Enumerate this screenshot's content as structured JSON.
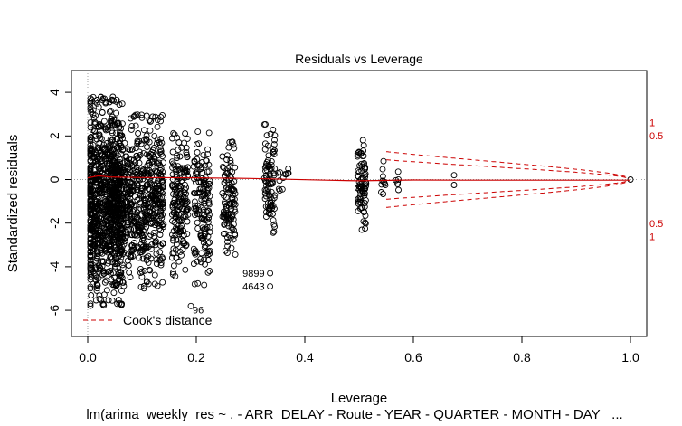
{
  "chart_data": {
    "type": "scatter",
    "title": "Residuals vs Leverage",
    "xlabel": "Leverage",
    "ylabel": "Standardized residuals",
    "subtitle": "lm(arima_weekly_res ~ . - ARR_DELAY - Route - YEAR - QUARTER - MONTH - DAY_ ...",
    "xlim": [
      -0.03,
      1.03
    ],
    "ylim": [
      -7.2,
      5
    ],
    "xticks": [
      0.0,
      0.2,
      0.4,
      0.6,
      0.8,
      1.0
    ],
    "xtick_labels": [
      "0.0",
      "0.2",
      "0.4",
      "0.6",
      "0.8",
      "1.0"
    ],
    "yticks": [
      -6,
      -4,
      -2,
      0,
      2,
      4
    ],
    "ytick_labels": [
      "-6",
      "-4",
      "-2",
      "0",
      "2",
      "4"
    ],
    "reference_lines": {
      "x": 0,
      "y": 0,
      "style": "dotted",
      "color": "#a0a0a0"
    },
    "point_clusters": [
      {
        "x": 0.03,
        "x_spread": 0.035,
        "y_low": -5.8,
        "y_high": 3.8,
        "points": 900
      },
      {
        "x": 0.09,
        "x_spread": 0.05,
        "y_low": -5.0,
        "y_high": 3.0,
        "points": 700
      },
      {
        "x": 0.17,
        "x_spread": 0.015,
        "y_low": -4.5,
        "y_high": 2.3,
        "points": 180
      },
      {
        "x": 0.21,
        "x_spread": 0.015,
        "y_low": -4.9,
        "y_high": 2.2,
        "points": 150
      },
      {
        "x": 0.26,
        "x_spread": 0.012,
        "y_low": -3.5,
        "y_high": 1.8,
        "points": 110
      },
      {
        "x": 0.335,
        "x_spread": 0.01,
        "y_low": -3.0,
        "y_high": 2.6,
        "points": 90
      },
      {
        "x": 0.36,
        "x_spread": 0.01,
        "y_low": -1.0,
        "y_high": 1.0,
        "points": 12
      },
      {
        "x": 0.505,
        "x_spread": 0.008,
        "y_low": -2.4,
        "y_high": 2.4,
        "points": 80
      },
      {
        "x": 0.545,
        "x_spread": 0.006,
        "y_low": -0.9,
        "y_high": 0.9,
        "points": 10
      },
      {
        "x": 0.57,
        "x_spread": 0.004,
        "y_low": -0.6,
        "y_high": 0.6,
        "points": 6
      }
    ],
    "labeled_points": [
      {
        "x": 0.336,
        "y": -4.3,
        "label": "9899"
      },
      {
        "x": 0.336,
        "y": -4.9,
        "label": "4643"
      },
      {
        "x": 0.19,
        "y": -5.8,
        "label": "96"
      }
    ],
    "extra_points": [
      {
        "x": 0.675,
        "y": 0.2
      },
      {
        "x": 0.675,
        "y": -0.25
      },
      {
        "x": 1.0,
        "y": 0.0
      }
    ],
    "smoother": {
      "color": "#cc0000",
      "x": [
        0.0,
        0.02,
        0.04,
        0.1,
        0.2,
        0.3,
        0.44,
        0.5,
        0.6,
        0.7,
        0.8,
        0.9,
        1.0
      ],
      "y": [
        0.08,
        0.17,
        0.12,
        0.09,
        0.08,
        0.05,
        -0.03,
        -0.06,
        -0.02,
        -0.03,
        -0.03,
        -0.03,
        -0.03
      ]
    },
    "cooks_distance": {
      "color": "#cc0000",
      "levels": [
        {
          "value": 0.5,
          "upper_label": "0.5",
          "lower_label": "0.5"
        },
        {
          "value": 1,
          "upper_label": "1",
          "lower_label": "1"
        }
      ]
    },
    "legend": {
      "label": "Cook's distance",
      "position": "bottom-left",
      "line_style": "dashed",
      "color": "#cc0000"
    },
    "grid": false
  }
}
